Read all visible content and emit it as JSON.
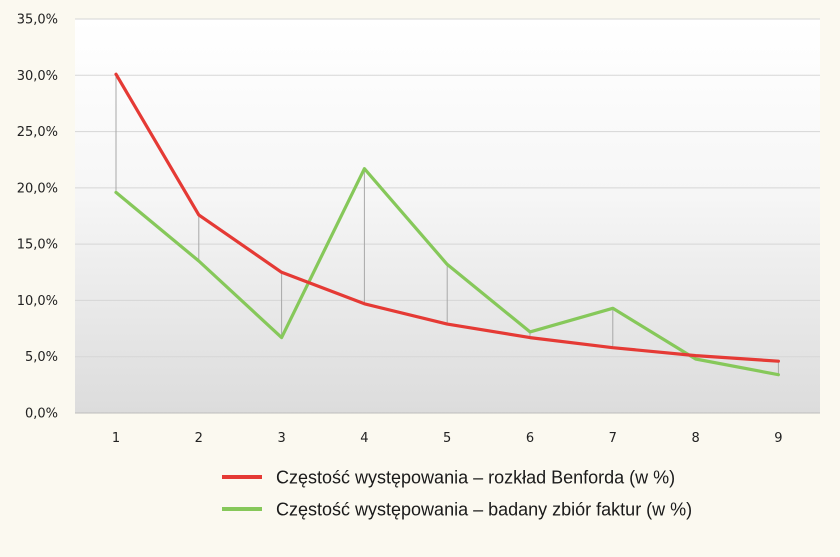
{
  "chart_data": {
    "type": "line",
    "categories": [
      "1",
      "2",
      "3",
      "4",
      "5",
      "6",
      "7",
      "8",
      "9"
    ],
    "series": [
      {
        "name": "Częstość występowania – rozkład Benforda (w %)",
        "color": "#e53a35",
        "values": [
          30.1,
          17.6,
          12.5,
          9.7,
          7.9,
          6.7,
          5.8,
          5.1,
          4.6
        ]
      },
      {
        "name": "Częstość występowania – badany zbiór faktur (w %)",
        "color": "#86c85a",
        "values": [
          19.6,
          13.5,
          6.7,
          21.7,
          13.2,
          7.2,
          9.3,
          4.8,
          3.4
        ]
      }
    ],
    "ylim": [
      0,
      35
    ],
    "yticks": [
      0,
      5,
      10,
      15,
      20,
      25,
      30,
      35
    ],
    "ytick_labels": [
      "0,0%",
      "5,0%",
      "10,0%",
      "15,0%",
      "20,0%",
      "25,0%",
      "30,0%",
      "35,0%"
    ],
    "drop_lines": true,
    "legend_position": "bottom"
  }
}
